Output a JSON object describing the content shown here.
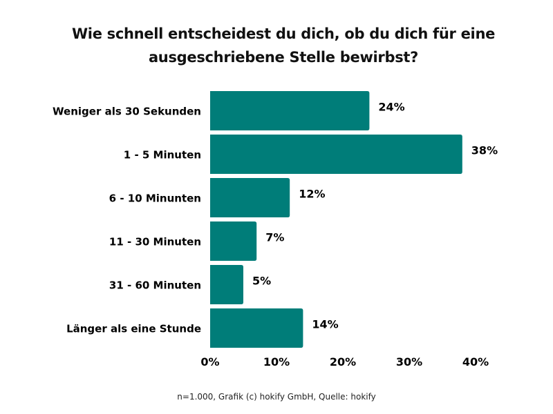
{
  "chart_data": {
    "type": "bar",
    "orientation": "horizontal",
    "title": [
      "Wie schnell entscheidest du dich, ob du dich für eine",
      "ausgeschriebene Stelle bewirbst?"
    ],
    "categories": [
      "Weniger als 30 Sekunden",
      "1 - 5 Minuten",
      "6 - 10 Minunten",
      "11 - 30 Minuten",
      "31 - 60 Minuten",
      "Länger als eine Stunde"
    ],
    "values": [
      24,
      38,
      12,
      7,
      5,
      14
    ],
    "value_labels": [
      "24%",
      "38%",
      "12%",
      "7%",
      "5%",
      "14%"
    ],
    "xlim": [
      0,
      40
    ],
    "x_ticks": [
      0,
      10,
      20,
      30,
      40
    ],
    "x_tick_labels": [
      "0%",
      "10%",
      "20%",
      "30%",
      "40%"
    ],
    "xlabel": "",
    "ylabel": "",
    "grid": false,
    "bar_color": "#007d79"
  },
  "footer": "n=1.000, Grafik (c) hokify GmbH, Quelle: hokify"
}
